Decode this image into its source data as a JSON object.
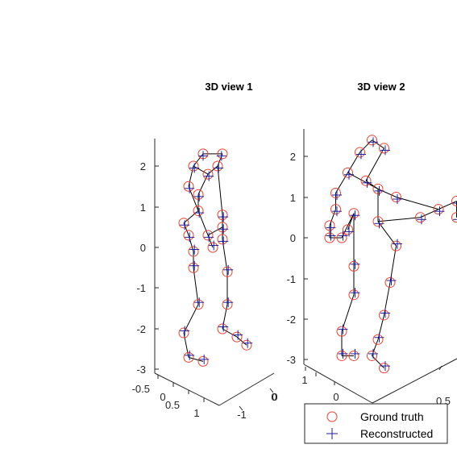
{
  "chart_data": [
    {
      "type": "scatter",
      "title": "3D view 1",
      "series": [
        {
          "name": "Ground truth",
          "marker": "circle",
          "color": "#e8412f",
          "points": [
            [
              0.5,
              2.3
            ],
            [
              0.3,
              2.0
            ],
            [
              0.6,
              1.8
            ],
            [
              0.9,
              2.3
            ],
            [
              0.8,
              2.0
            ],
            [
              0.2,
              1.5
            ],
            [
              0.4,
              1.3
            ],
            [
              0.4,
              0.9
            ],
            [
              0.1,
              0.6
            ],
            [
              0.2,
              0.3
            ],
            [
              0.3,
              -0.1
            ],
            [
              0.6,
              0.3
            ],
            [
              0.7,
              0.0
            ],
            [
              0.9,
              0.5
            ],
            [
              0.3,
              -0.5
            ],
            [
              0.4,
              -1.4
            ],
            [
              0.1,
              -2.1
            ],
            [
              0.2,
              -2.7
            ],
            [
              0.5,
              -2.8
            ],
            [
              0.9,
              0.8
            ],
            [
              0.9,
              0.2
            ],
            [
              1.0,
              -0.6
            ],
            [
              1.0,
              -1.4
            ],
            [
              0.9,
              -2.0
            ],
            [
              1.2,
              -2.2
            ],
            [
              1.4,
              -2.4
            ]
          ],
          "point_labels": []
        },
        {
          "name": "Reconstructed",
          "marker": "plus",
          "color": "#1f1f9c",
          "points": [
            [
              0.5,
              2.25
            ],
            [
              0.32,
              1.95
            ],
            [
              0.62,
              1.75
            ],
            [
              0.88,
              2.25
            ],
            [
              0.82,
              1.95
            ],
            [
              0.22,
              1.45
            ],
            [
              0.42,
              1.25
            ],
            [
              0.42,
              0.85
            ],
            [
              0.12,
              0.55
            ],
            [
              0.22,
              0.25
            ],
            [
              0.32,
              -0.05
            ],
            [
              0.62,
              0.25
            ],
            [
              0.72,
              0.05
            ],
            [
              0.92,
              0.45
            ],
            [
              0.32,
              -0.45
            ],
            [
              0.42,
              -1.35
            ],
            [
              0.12,
              -2.05
            ],
            [
              0.22,
              -2.65
            ],
            [
              0.52,
              -2.75
            ],
            [
              0.92,
              0.75
            ],
            [
              0.92,
              0.15
            ],
            [
              1.02,
              -0.55
            ],
            [
              1.02,
              -1.35
            ],
            [
              0.92,
              -1.95
            ],
            [
              1.22,
              -2.15
            ],
            [
              1.42,
              -2.35
            ]
          ]
        }
      ],
      "axes": {
        "z_ticks": [
          "2",
          "1",
          "0",
          "-1",
          "-2",
          "-3"
        ],
        "x_ticks": [
          "-0.5",
          "0",
          "0.5",
          "1"
        ],
        "y_ticks": [
          "0",
          "-1"
        ]
      },
      "zlim": [
        -3,
        2.5
      ],
      "grid": false
    },
    {
      "type": "scatter",
      "title": "3D view 2",
      "series": [
        {
          "name": "Ground truth",
          "marker": "circle",
          "color": "#e8412f",
          "points": [
            [
              0.5,
              2.4
            ],
            [
              0.3,
              2.1
            ],
            [
              0.7,
              2.2
            ],
            [
              0.1,
              1.6
            ],
            [
              0.4,
              1.4
            ],
            [
              0.6,
              1.2
            ],
            [
              0.9,
              1.0
            ],
            [
              -0.1,
              1.1
            ],
            [
              -0.1,
              0.7
            ],
            [
              -0.2,
              0.3
            ],
            [
              -0.2,
              0.0
            ],
            [
              0.0,
              0.0
            ],
            [
              0.2,
              0.6
            ],
            [
              0.1,
              0.2
            ],
            [
              0.6,
              0.4
            ],
            [
              1.3,
              0.5
            ],
            [
              1.6,
              0.7
            ],
            [
              1.9,
              0.9
            ],
            [
              1.9,
              0.5
            ],
            [
              0.2,
              -0.7
            ],
            [
              0.2,
              -1.4
            ],
            [
              0.0,
              -2.3
            ],
            [
              0.0,
              -2.9
            ],
            [
              0.2,
              -2.9
            ],
            [
              0.9,
              -0.2
            ],
            [
              0.8,
              -1.1
            ],
            [
              0.7,
              -1.9
            ],
            [
              0.6,
              -2.5
            ],
            [
              0.5,
              -2.9
            ],
            [
              0.7,
              -3.2
            ]
          ],
          "point_labels": []
        },
        {
          "name": "Reconstructed",
          "marker": "plus",
          "color": "#1f1f9c",
          "points": [
            [
              0.52,
              2.35
            ],
            [
              0.32,
              2.05
            ],
            [
              0.72,
              2.15
            ],
            [
              0.12,
              1.55
            ],
            [
              0.42,
              1.35
            ],
            [
              0.62,
              1.15
            ],
            [
              0.92,
              0.95
            ],
            [
              -0.08,
              1.05
            ],
            [
              -0.08,
              0.65
            ],
            [
              -0.18,
              0.25
            ],
            [
              -0.18,
              0.05
            ],
            [
              0.02,
              0.05
            ],
            [
              0.22,
              0.55
            ],
            [
              0.12,
              0.15
            ],
            [
              0.62,
              0.35
            ],
            [
              1.32,
              0.45
            ],
            [
              1.62,
              0.65
            ],
            [
              1.92,
              0.85
            ],
            [
              1.92,
              0.45
            ],
            [
              0.22,
              -0.65
            ],
            [
              0.22,
              -1.35
            ],
            [
              0.02,
              -2.25
            ],
            [
              0.02,
              -2.85
            ],
            [
              0.22,
              -2.85
            ],
            [
              0.92,
              -0.15
            ],
            [
              0.82,
              -1.05
            ],
            [
              0.72,
              -1.85
            ],
            [
              0.62,
              -2.45
            ],
            [
              0.52,
              -2.85
            ],
            [
              0.72,
              -3.15
            ]
          ]
        }
      ],
      "axes": {
        "z_ticks": [
          "2",
          "1",
          "0",
          "-1",
          "-2",
          "-3"
        ],
        "x_ticks": [
          "0",
          "0.5"
        ],
        "y_ticks": [
          "1",
          "0"
        ]
      },
      "zlim": [
        -3,
        2.5
      ],
      "grid": false
    }
  ],
  "legend": {
    "placement": "bottom-right",
    "entries": [
      {
        "label": "Ground truth",
        "marker": "circle",
        "color": "#e8412f"
      },
      {
        "label": "Reconstructed",
        "marker": "plus",
        "color": "#1f1f9c"
      }
    ]
  }
}
